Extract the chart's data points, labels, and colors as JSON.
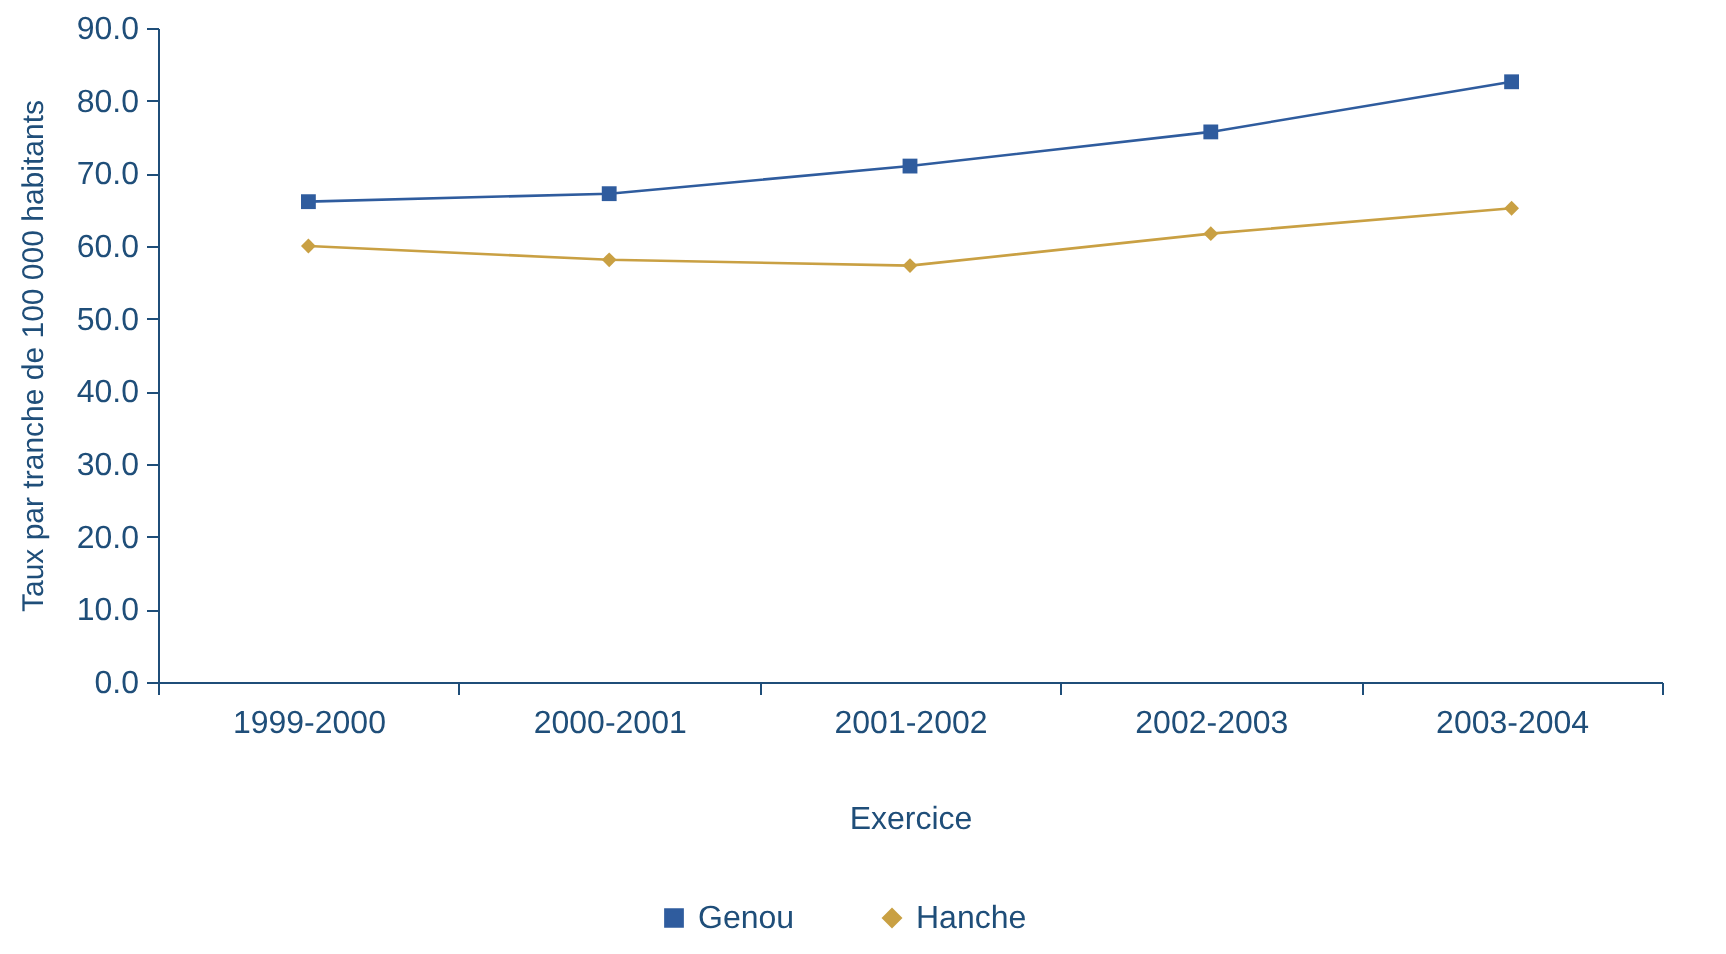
{
  "chart_data": {
    "type": "line",
    "xlabel": "Exercice",
    "ylabel": "Taux par tranche de 100 000 habitants",
    "categories": [
      "1999-2000",
      "2000-2001",
      "2001-2002",
      "2002-2003",
      "2003-2004"
    ],
    "series": [
      {
        "name": "Genou",
        "color": "#2f5c9e",
        "marker": "square",
        "values": [
          66.1,
          67.2,
          71.0,
          75.7,
          82.6
        ]
      },
      {
        "name": "Hanche",
        "color": "#c9a043",
        "marker": "diamond",
        "values": [
          60.0,
          58.1,
          57.3,
          61.7,
          65.2
        ]
      }
    ],
    "ylim": [
      0,
      90
    ],
    "yticks": [
      {
        "value": 0,
        "label": "0.0"
      },
      {
        "value": 10,
        "label": "10.0"
      },
      {
        "value": 20,
        "label": "20.0"
      },
      {
        "value": 30,
        "label": "30.0"
      },
      {
        "value": 40,
        "label": "40.0"
      },
      {
        "value": 50,
        "label": "50.0"
      },
      {
        "value": 60,
        "label": "60.0"
      },
      {
        "value": 70,
        "label": "70.0"
      },
      {
        "value": 80,
        "label": "80.0"
      },
      {
        "value": 90,
        "label": "90.0"
      }
    ],
    "grid": false,
    "legend": "bottom",
    "line_style": "solid"
  }
}
